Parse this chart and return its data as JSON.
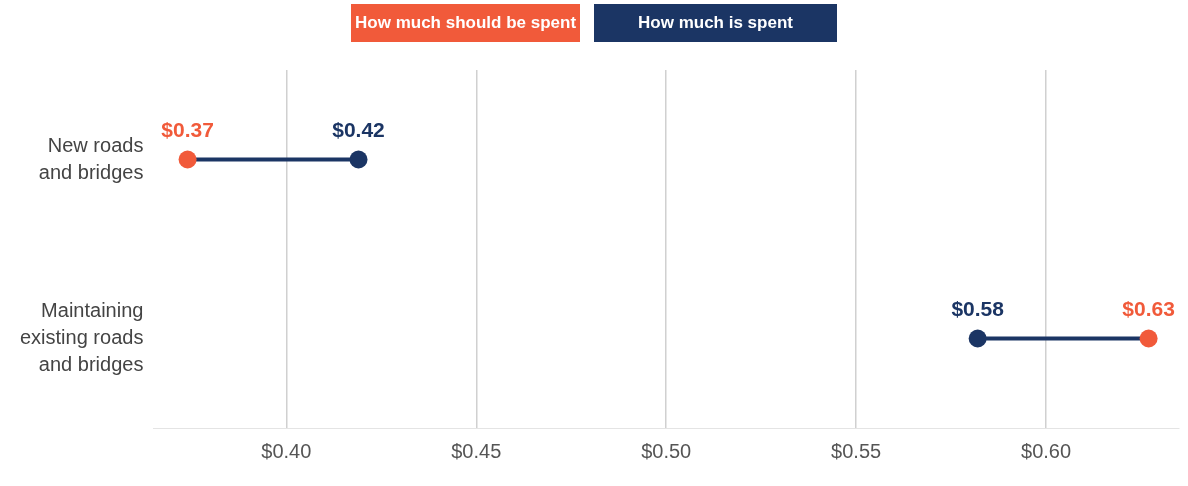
{
  "chart_data": {
    "type": "scatter",
    "orientation": "horizontal",
    "categories": [
      "New roads and bridges",
      "Maintaining existing roads and bridges"
    ],
    "series": [
      {
        "name": "How much should be spent",
        "color": "#f15a3a",
        "values": [
          0.374,
          0.627
        ],
        "value_labels": [
          "$0.37",
          "$0.63"
        ]
      },
      {
        "name": "How much is spent",
        "color": "#1b3564",
        "values": [
          0.419,
          0.582
        ],
        "value_labels": [
          "$0.42",
          "$0.58"
        ]
      }
    ],
    "xlim": [
      0.365,
      0.635
    ],
    "xticks": [
      {
        "value": 0.4,
        "label": "$0.40"
      },
      {
        "value": 0.45,
        "label": "$0.45"
      },
      {
        "value": 0.5,
        "label": "$0.50"
      },
      {
        "value": 0.55,
        "label": "$0.55"
      },
      {
        "value": 0.6,
        "label": "$0.60"
      }
    ],
    "grid": "x",
    "legend": "top",
    "marker": "circle"
  }
}
